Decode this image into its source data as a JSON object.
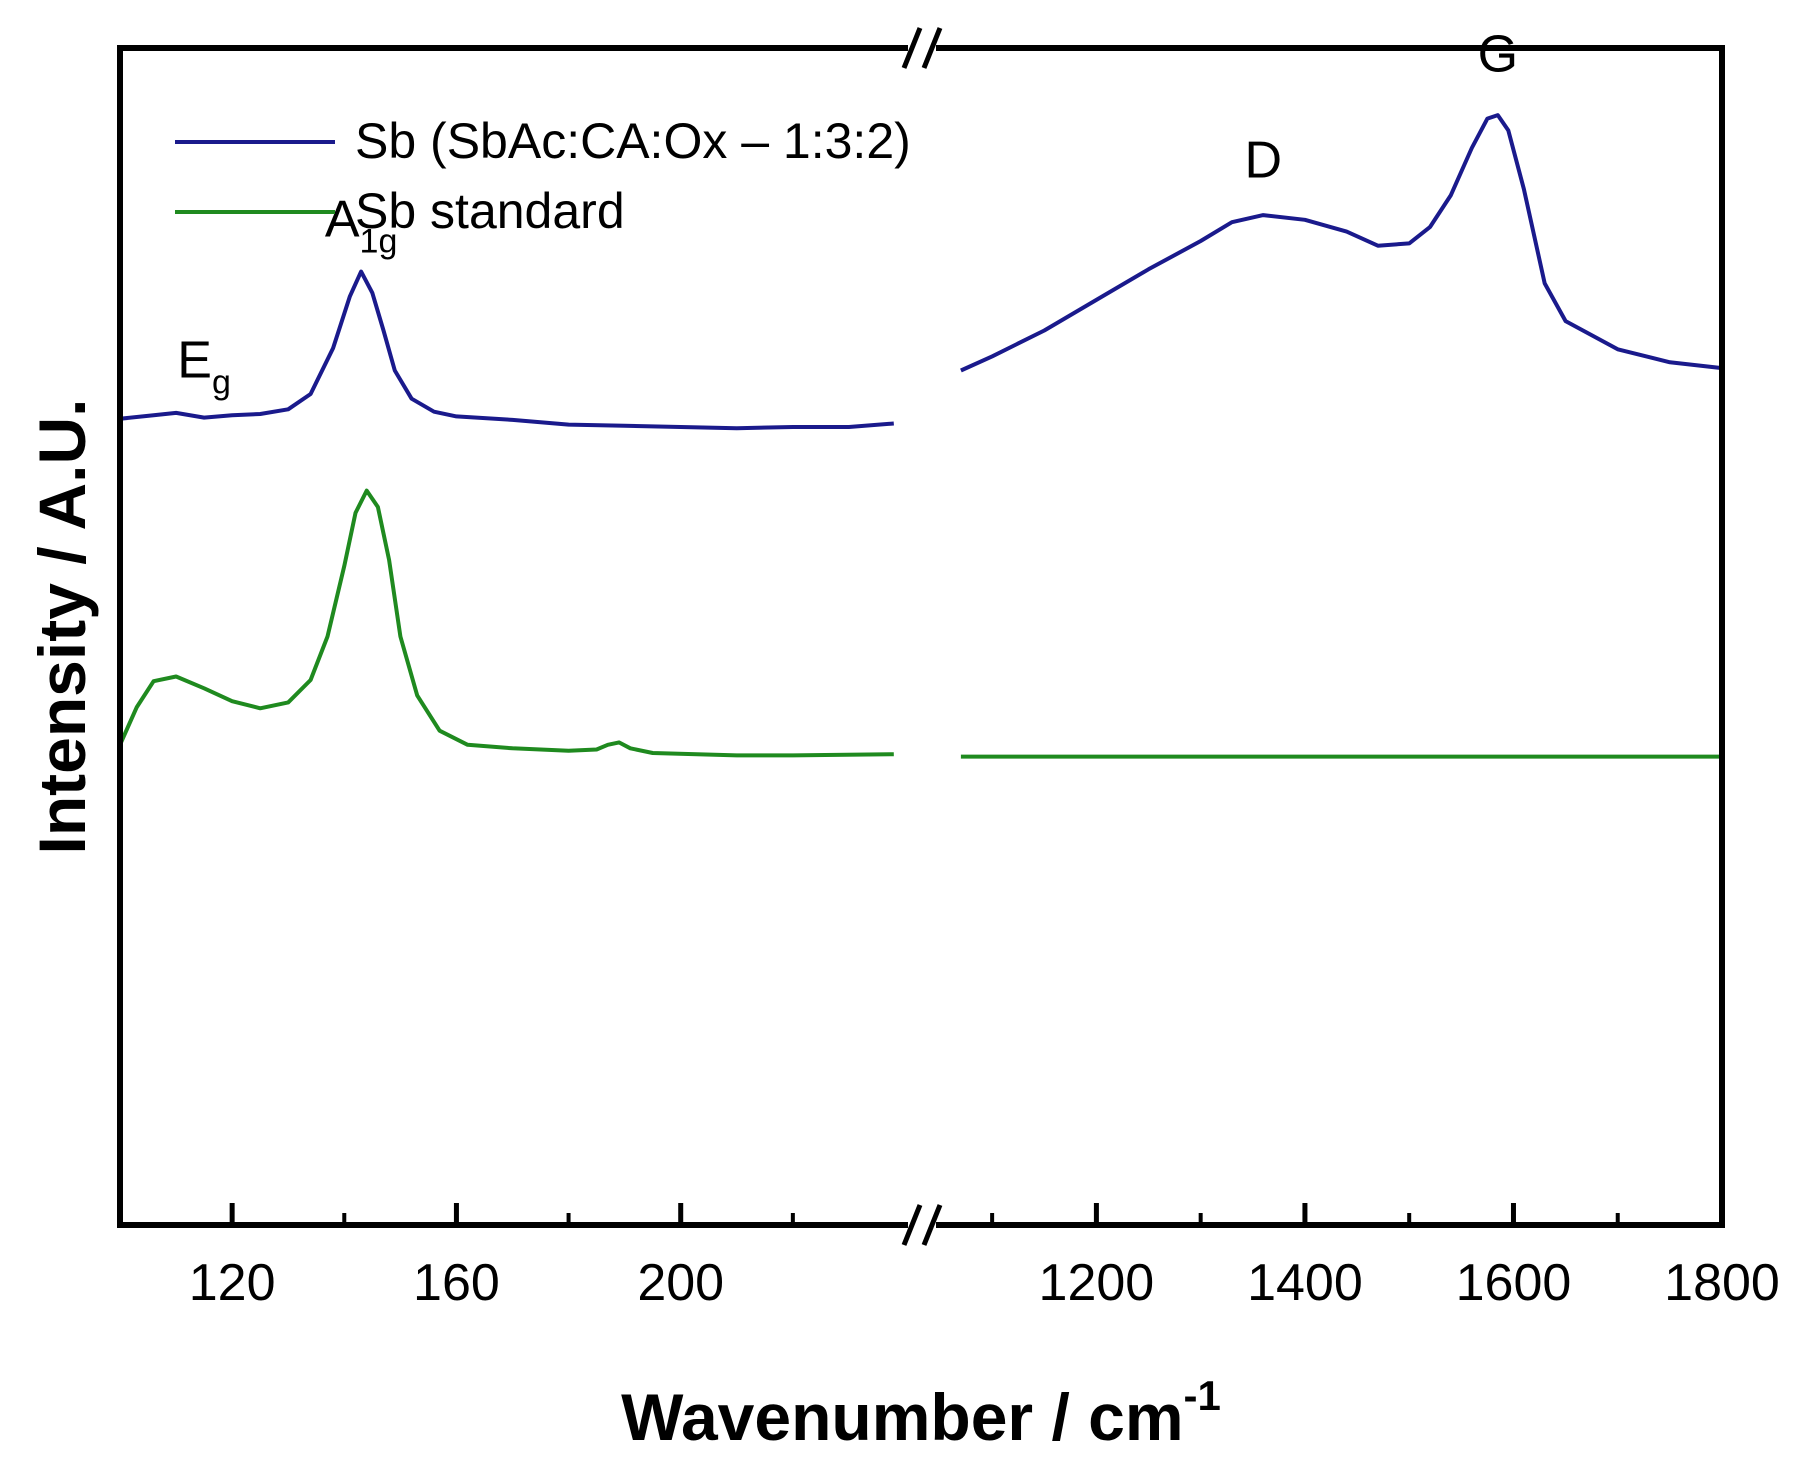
{
  "chart_data": {
    "type": "line",
    "x_axis": {
      "label": "Wavenumber / cm",
      "label_superscript": "-1",
      "broken": true,
      "segments": [
        {
          "range": [
            100,
            240
          ],
          "ticks": [
            120,
            160,
            200
          ]
        },
        {
          "range": [
            1050,
            1800
          ],
          "ticks": [
            1200,
            1400,
            1600,
            1800
          ]
        }
      ]
    },
    "y_axis": {
      "label": "Intensity / A.U.",
      "range": [
        0,
        100
      ],
      "tick_labels": false
    },
    "legend": {
      "placement": "top-left"
    },
    "series": [
      {
        "name": "Sb (SbAc:CA:Ox – 1:3:2)",
        "color": "#1a1a8c",
        "segments": [
          [
            [
              100,
              68.5
            ],
            [
              106,
              68.8
            ],
            [
              110,
              69.0
            ],
            [
              115,
              68.6
            ],
            [
              120,
              68.8
            ],
            [
              125,
              68.9
            ],
            [
              130,
              69.3
            ],
            [
              134,
              70.6
            ],
            [
              138,
              74.5
            ],
            [
              141,
              78.9
            ],
            [
              143,
              81.0
            ],
            [
              145,
              79.2
            ],
            [
              147,
              76.0
            ],
            [
              149,
              72.6
            ],
            [
              152,
              70.2
            ],
            [
              156,
              69.1
            ],
            [
              160,
              68.7
            ],
            [
              170,
              68.4
            ],
            [
              180,
              68.0
            ],
            [
              190,
              67.9
            ],
            [
              200,
              67.8
            ],
            [
              210,
              67.7
            ],
            [
              220,
              67.8
            ],
            [
              230,
              67.8
            ],
            [
              238,
              68.1
            ]
          ],
          [
            [
              1070,
              72.6
            ],
            [
              1100,
              73.8
            ],
            [
              1150,
              76.0
            ],
            [
              1200,
              78.6
            ],
            [
              1250,
              81.2
            ],
            [
              1300,
              83.6
            ],
            [
              1330,
              85.2
            ],
            [
              1360,
              85.8
            ],
            [
              1400,
              85.4
            ],
            [
              1440,
              84.4
            ],
            [
              1470,
              83.2
            ],
            [
              1500,
              83.4
            ],
            [
              1520,
              84.8
            ],
            [
              1540,
              87.5
            ],
            [
              1560,
              91.5
            ],
            [
              1575,
              94.0
            ],
            [
              1585,
              94.3
            ],
            [
              1595,
              93.0
            ],
            [
              1610,
              88.0
            ],
            [
              1630,
              80.0
            ],
            [
              1650,
              76.8
            ],
            [
              1700,
              74.4
            ],
            [
              1750,
              73.3
            ],
            [
              1800,
              72.8
            ]
          ]
        ]
      },
      {
        "name": "Sb standard",
        "color": "#1f8a1f",
        "segments": [
          [
            [
              100,
              40.8
            ],
            [
              103,
              44.0
            ],
            [
              106,
              46.2
            ],
            [
              110,
              46.6
            ],
            [
              115,
              45.6
            ],
            [
              120,
              44.5
            ],
            [
              125,
              43.9
            ],
            [
              130,
              44.4
            ],
            [
              134,
              46.3
            ],
            [
              137,
              50.0
            ],
            [
              140,
              56.0
            ],
            [
              142,
              60.5
            ],
            [
              144,
              62.4
            ],
            [
              146,
              61.0
            ],
            [
              148,
              56.5
            ],
            [
              150,
              50.0
            ],
            [
              153,
              45.0
            ],
            [
              157,
              42.0
            ],
            [
              162,
              40.8
            ],
            [
              170,
              40.5
            ],
            [
              180,
              40.3
            ],
            [
              185,
              40.4
            ],
            [
              187,
              40.8
            ],
            [
              189,
              41.0
            ],
            [
              191,
              40.5
            ],
            [
              195,
              40.1
            ],
            [
              210,
              39.9
            ],
            [
              220,
              39.9
            ],
            [
              238,
              40.0
            ]
          ],
          [
            [
              1070,
              39.8
            ],
            [
              1200,
              39.8
            ],
            [
              1400,
              39.8
            ],
            [
              1600,
              39.8
            ],
            [
              1800,
              39.8
            ]
          ]
        ]
      }
    ],
    "annotations": [
      {
        "text": "E",
        "sub": "g",
        "x": 115,
        "y": 72
      },
      {
        "text": "A",
        "sub": "1g",
        "x": 143,
        "y": 84
      },
      {
        "text": "D",
        "sub": "",
        "x": 1360,
        "y": 89
      },
      {
        "text": "G",
        "sub": "",
        "x": 1585,
        "y": 98
      }
    ]
  }
}
